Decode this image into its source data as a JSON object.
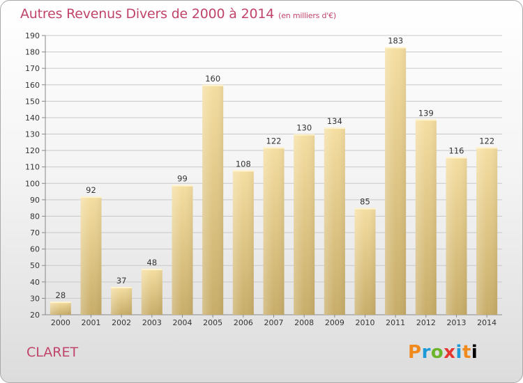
{
  "header": {
    "title": "Autres Revenus Divers de 2000 à 2014",
    "unit": "(en milliers d'€)"
  },
  "footer": {
    "commune": "CLARET",
    "logo_text": "Proxiti"
  },
  "colors": {
    "title": "#c0446a",
    "bar_light": "#f5dea1",
    "bar_dark": "#c8ad69",
    "grid": "#c8c8c8"
  },
  "chart_data": {
    "type": "bar",
    "title": "Autres Revenus Divers de 2000 à 2014",
    "subtitle": "(en milliers d'€)",
    "xlabel": "",
    "ylabel": "",
    "categories": [
      "2000",
      "2001",
      "2002",
      "2003",
      "2004",
      "2005",
      "2006",
      "2007",
      "2008",
      "2009",
      "2010",
      "2011",
      "2012",
      "2013",
      "2014"
    ],
    "values": [
      28,
      92,
      37,
      48,
      99,
      160,
      108,
      122,
      130,
      134,
      85,
      183,
      139,
      116,
      122
    ],
    "ylim": [
      20,
      190
    ],
    "yticks": [
      20,
      30,
      40,
      50,
      60,
      70,
      80,
      90,
      100,
      110,
      120,
      130,
      140,
      150,
      160,
      170,
      180,
      190
    ],
    "grid": true,
    "legend": "none"
  }
}
